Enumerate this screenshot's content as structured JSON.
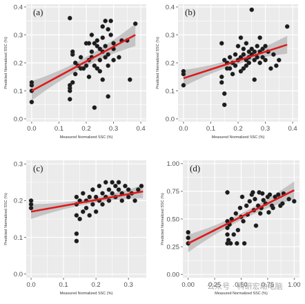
{
  "watermark": "公众号 · 科研宏动电脑",
  "colors": {
    "point": "#1c1c1c",
    "fit": "#e0191c",
    "band": "#bdbdbd",
    "panel_bg": "#ebebeb",
    "grid": "#ffffff"
  },
  "chart_data": [
    {
      "type": "scatter",
      "panel_label": "(a)",
      "xlabel": "Measured Normalized SSC (%)",
      "ylabel": "Predicted Normalized SSC (%)",
      "xlim": [
        -0.02,
        0.42
      ],
      "ylim": [
        -0.01,
        0.41
      ],
      "xticks": [
        0.0,
        0.1,
        0.2,
        0.3,
        0.4
      ],
      "xtick_labels": [
        "0.0",
        "0.1",
        "0.2",
        "0.3",
        "0.4"
      ],
      "yticks": [
        0.0,
        0.1,
        0.2,
        0.3,
        0.4
      ],
      "ytick_labels": [
        "0.0",
        "0.1",
        "0.2",
        "0.3",
        "0.4"
      ],
      "grid": true,
      "fit": {
        "x": [
          0.0,
          0.38
        ],
        "y": [
          0.1,
          0.3
        ],
        "band_start": 0.035,
        "band_mid": 0.016,
        "band_end": 0.04
      },
      "points": [
        [
          0.0,
          0.06
        ],
        [
          0.0,
          0.1
        ],
        [
          0.0,
          0.12
        ],
        [
          0.0,
          0.13
        ],
        [
          0.14,
          0.36
        ],
        [
          0.14,
          0.1
        ],
        [
          0.14,
          0.11
        ],
        [
          0.14,
          0.12
        ],
        [
          0.14,
          0.07
        ],
        [
          0.15,
          0.13
        ],
        [
          0.15,
          0.23
        ],
        [
          0.15,
          0.24
        ],
        [
          0.16,
          0.2
        ],
        [
          0.16,
          0.16
        ],
        [
          0.17,
          0.19
        ],
        [
          0.18,
          0.22
        ],
        [
          0.18,
          0.18
        ],
        [
          0.19,
          0.18
        ],
        [
          0.2,
          0.19
        ],
        [
          0.2,
          0.27
        ],
        [
          0.21,
          0.15
        ],
        [
          0.21,
          0.21
        ],
        [
          0.21,
          0.27
        ],
        [
          0.22,
          0.22
        ],
        [
          0.22,
          0.24
        ],
        [
          0.22,
          0.3
        ],
        [
          0.23,
          0.27
        ],
        [
          0.23,
          0.19
        ],
        [
          0.23,
          0.04
        ],
        [
          0.24,
          0.18
        ],
        [
          0.24,
          0.28
        ],
        [
          0.24,
          0.26
        ],
        [
          0.25,
          0.25
        ],
        [
          0.25,
          0.21
        ],
        [
          0.25,
          0.17
        ],
        [
          0.26,
          0.33
        ],
        [
          0.26,
          0.29
        ],
        [
          0.26,
          0.24
        ],
        [
          0.26,
          0.14
        ],
        [
          0.27,
          0.35
        ],
        [
          0.27,
          0.22
        ],
        [
          0.27,
          0.26
        ],
        [
          0.28,
          0.19
        ],
        [
          0.28,
          0.32
        ],
        [
          0.28,
          0.23
        ],
        [
          0.28,
          0.08
        ],
        [
          0.29,
          0.35
        ],
        [
          0.29,
          0.3
        ],
        [
          0.3,
          0.27
        ],
        [
          0.3,
          0.21
        ],
        [
          0.3,
          0.25
        ],
        [
          0.32,
          0.22
        ],
        [
          0.33,
          0.28
        ],
        [
          0.35,
          0.28
        ],
        [
          0.36,
          0.14
        ],
        [
          0.38,
          0.34
        ]
      ]
    },
    {
      "type": "scatter",
      "panel_label": "(b)",
      "xlabel": "Measured Normalized SSC (%)",
      "ylabel": "Predicted Normalized SSC (%)",
      "xlim": [
        -0.02,
        0.42
      ],
      "ylim": [
        -0.01,
        0.41
      ],
      "xticks": [
        0.0,
        0.1,
        0.2,
        0.3,
        0.4
      ],
      "xtick_labels": [
        "0.0",
        "0.1",
        "0.2",
        "0.3",
        "0.4"
      ],
      "yticks": [
        0.0,
        0.1,
        0.2,
        0.3,
        0.4
      ],
      "ytick_labels": [
        "0.0",
        "0.1",
        "0.2",
        "0.3",
        "0.4"
      ],
      "grid": true,
      "fit": {
        "x": [
          0.0,
          0.38
        ],
        "y": [
          0.145,
          0.265
        ],
        "band_start": 0.03,
        "band_mid": 0.012,
        "band_end": 0.032
      },
      "points": [
        [
          0.0,
          0.12
        ],
        [
          0.0,
          0.16
        ],
        [
          0.0,
          0.17
        ],
        [
          0.14,
          0.27
        ],
        [
          0.14,
          0.15
        ],
        [
          0.14,
          0.13
        ],
        [
          0.15,
          0.09
        ],
        [
          0.15,
          0.05
        ],
        [
          0.15,
          0.21
        ],
        [
          0.16,
          0.18
        ],
        [
          0.16,
          0.2
        ],
        [
          0.17,
          0.22
        ],
        [
          0.17,
          0.18
        ],
        [
          0.18,
          0.16
        ],
        [
          0.18,
          0.2
        ],
        [
          0.19,
          0.23
        ],
        [
          0.19,
          0.19
        ],
        [
          0.2,
          0.21
        ],
        [
          0.2,
          0.26
        ],
        [
          0.21,
          0.17
        ],
        [
          0.21,
          0.22
        ],
        [
          0.21,
          0.29
        ],
        [
          0.22,
          0.18
        ],
        [
          0.22,
          0.23
        ],
        [
          0.22,
          0.25
        ],
        [
          0.23,
          0.21
        ],
        [
          0.23,
          0.19
        ],
        [
          0.23,
          0.27
        ],
        [
          0.24,
          0.22
        ],
        [
          0.24,
          0.24
        ],
        [
          0.24,
          0.2
        ],
        [
          0.25,
          0.39
        ],
        [
          0.25,
          0.25
        ],
        [
          0.25,
          0.23
        ],
        [
          0.26,
          0.21
        ],
        [
          0.26,
          0.24
        ],
        [
          0.26,
          0.14
        ],
        [
          0.27,
          0.26
        ],
        [
          0.27,
          0.22
        ],
        [
          0.28,
          0.2
        ],
        [
          0.28,
          0.24
        ],
        [
          0.28,
          0.29
        ],
        [
          0.29,
          0.22
        ],
        [
          0.29,
          0.25
        ],
        [
          0.3,
          0.26
        ],
        [
          0.3,
          0.21
        ],
        [
          0.31,
          0.24
        ],
        [
          0.32,
          0.18
        ],
        [
          0.33,
          0.23
        ],
        [
          0.34,
          0.19
        ],
        [
          0.35,
          0.21
        ],
        [
          0.38,
          0.33
        ]
      ]
    },
    {
      "type": "scatter",
      "panel_label": "(c)",
      "xlabel": "Measured Normalized SSC (%)",
      "ylabel": "Predicted Normalized SSC (%)",
      "xlim": [
        -0.015,
        0.355
      ],
      "ylim": [
        -0.01,
        0.31
      ],
      "xticks": [
        0.0,
        0.1,
        0.2,
        0.3
      ],
      "xtick_labels": [
        "0.0",
        "0.1",
        "0.2",
        "0.3"
      ],
      "yticks": [
        0.0,
        0.1,
        0.2,
        0.3
      ],
      "ytick_labels": [
        "0.0",
        "0.1",
        "0.2",
        "0.3"
      ],
      "grid": true,
      "fit": {
        "x": [
          0.0,
          0.345
        ],
        "y": [
          0.17,
          0.225
        ],
        "band_start": 0.02,
        "band_mid": 0.007,
        "band_end": 0.018
      },
      "points": [
        [
          0.0,
          0.18
        ],
        [
          0.0,
          0.19
        ],
        [
          0.0,
          0.2
        ],
        [
          0.14,
          0.09
        ],
        [
          0.14,
          0.11
        ],
        [
          0.14,
          0.16
        ],
        [
          0.14,
          0.19
        ],
        [
          0.14,
          0.21
        ],
        [
          0.15,
          0.15
        ],
        [
          0.15,
          0.2
        ],
        [
          0.16,
          0.17
        ],
        [
          0.16,
          0.22
        ],
        [
          0.17,
          0.2
        ],
        [
          0.17,
          0.18
        ],
        [
          0.18,
          0.21
        ],
        [
          0.18,
          0.16
        ],
        [
          0.19,
          0.19
        ],
        [
          0.19,
          0.23
        ],
        [
          0.2,
          0.17
        ],
        [
          0.2,
          0.21
        ],
        [
          0.21,
          0.2
        ],
        [
          0.21,
          0.24
        ],
        [
          0.22,
          0.22
        ],
        [
          0.22,
          0.19
        ],
        [
          0.23,
          0.25
        ],
        [
          0.23,
          0.21
        ],
        [
          0.24,
          0.23
        ],
        [
          0.24,
          0.2
        ],
        [
          0.25,
          0.25
        ],
        [
          0.25,
          0.22
        ],
        [
          0.26,
          0.24
        ],
        [
          0.26,
          0.21
        ],
        [
          0.27,
          0.23
        ],
        [
          0.27,
          0.25
        ],
        [
          0.28,
          0.22
        ],
        [
          0.28,
          0.2
        ],
        [
          0.29,
          0.24
        ],
        [
          0.3,
          0.21
        ],
        [
          0.3,
          0.23
        ],
        [
          0.31,
          0.22
        ],
        [
          0.32,
          0.2
        ],
        [
          0.33,
          0.23
        ],
        [
          0.34,
          0.24
        ]
      ]
    },
    {
      "type": "scatter",
      "panel_label": "(d)",
      "xlabel": "Measured Normalized SSC (%)",
      "ylabel": "Predicted Normalized SSC (%)",
      "xlim": [
        -0.05,
        1.05
      ],
      "ylim": [
        -0.03,
        1.03
      ],
      "xticks": [
        0.0,
        0.25,
        0.5,
        0.75,
        1.0
      ],
      "xtick_labels": [
        "0.00",
        "0.25",
        "0.50",
        "0.75",
        "1.00"
      ],
      "yticks": [
        0.0,
        0.25,
        0.5,
        0.75,
        1.0
      ],
      "ytick_labels": [
        "0.00",
        "0.25",
        "0.50",
        "0.75",
        "1.00"
      ],
      "grid": true,
      "fit": {
        "x": [
          0.0,
          1.0
        ],
        "y": [
          0.28,
          0.76
        ],
        "band_start": 0.08,
        "band_mid": 0.03,
        "band_end": 0.08
      },
      "points": [
        [
          0.0,
          0.28
        ],
        [
          0.0,
          0.33
        ],
        [
          0.0,
          0.38
        ],
        [
          0.37,
          0.28
        ],
        [
          0.37,
          0.36
        ],
        [
          0.37,
          0.42
        ],
        [
          0.37,
          0.48
        ],
        [
          0.37,
          0.74
        ],
        [
          0.38,
          0.31
        ],
        [
          0.39,
          0.45
        ],
        [
          0.4,
          0.28
        ],
        [
          0.41,
          0.5
        ],
        [
          0.43,
          0.36
        ],
        [
          0.45,
          0.55
        ],
        [
          0.46,
          0.28
        ],
        [
          0.47,
          0.4
        ],
        [
          0.49,
          0.6
        ],
        [
          0.5,
          0.52
        ],
        [
          0.51,
          0.7
        ],
        [
          0.52,
          0.48
        ],
        [
          0.53,
          0.28
        ],
        [
          0.55,
          0.62
        ],
        [
          0.56,
          0.54
        ],
        [
          0.58,
          0.66
        ],
        [
          0.6,
          0.72
        ],
        [
          0.61,
          0.74
        ],
        [
          0.62,
          0.58
        ],
        [
          0.63,
          0.68
        ],
        [
          0.64,
          0.44
        ],
        [
          0.66,
          0.62
        ],
        [
          0.67,
          0.74
        ],
        [
          0.68,
          0.55
        ],
        [
          0.69,
          0.6
        ],
        [
          0.7,
          0.73
        ],
        [
          0.71,
          0.67
        ],
        [
          0.73,
          0.64
        ],
        [
          0.75,
          0.7
        ],
        [
          0.76,
          0.56
        ],
        [
          0.77,
          0.72
        ],
        [
          0.79,
          0.62
        ],
        [
          0.8,
          0.6
        ],
        [
          0.82,
          0.7
        ],
        [
          0.85,
          0.72
        ],
        [
          0.87,
          0.62
        ],
        [
          0.89,
          0.64
        ],
        [
          0.9,
          0.73
        ],
        [
          0.95,
          0.68
        ],
        [
          1.0,
          0.66
        ]
      ]
    }
  ]
}
